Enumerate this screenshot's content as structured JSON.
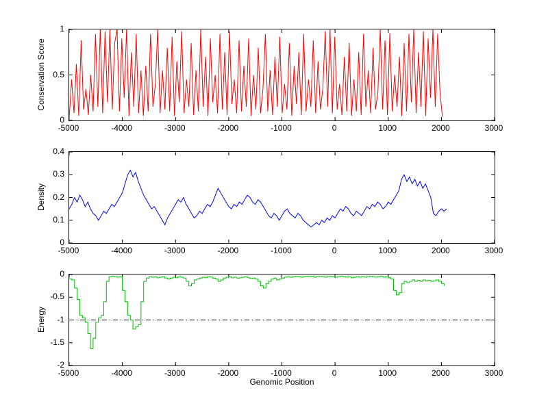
{
  "figure": {
    "background": "#ffffff"
  },
  "chart_data": [
    {
      "type": "line",
      "name": "conservation-score-plot",
      "ylabel": "Conservation Score",
      "color": "#ff0000",
      "grid": false,
      "legend": "none",
      "xlim": [
        -5000,
        3000
      ],
      "ylim": [
        0,
        1
      ],
      "xticks": [
        -5000,
        -4000,
        -3000,
        -2000,
        -1000,
        0,
        1000,
        2000,
        3000
      ],
      "xtick_labels": [
        "-5000",
        "-4000",
        "-3000",
        "-2000",
        "-1000",
        "0",
        "1000",
        "2000",
        "3000"
      ],
      "yticks": [
        0,
        0.5,
        1
      ],
      "ytick_labels": [
        "0",
        "0.5",
        "1"
      ],
      "x": {
        "start": -5000,
        "step": 45
      },
      "values": [
        0.02,
        0.45,
        0.08,
        0.62,
        0.05,
        0.88,
        0.12,
        0.35,
        0.06,
        0.5,
        0.1,
        0.95,
        0.15,
        1,
        0.08,
        0.98,
        0.2,
        1,
        0.12,
        0.85,
        1,
        0.1,
        0.9,
        0.25,
        1,
        0.05,
        0.75,
        0.15,
        0.95,
        0.08,
        0.55,
        0.05,
        0.6,
        0.1,
        0.95,
        0.15,
        0.4,
        1,
        0.08,
        0.55,
        0.12,
        0.8,
        0.1,
        0.92,
        0.05,
        0.65,
        0.2,
        0.98,
        0.08,
        0.45,
        0.15,
        0.85,
        0.06,
        0.55,
        0.1,
        1,
        0.15,
        0.7,
        0.05,
        0.9,
        0.2,
        0.5,
        0.08,
        0.95,
        0.12,
        0.75,
        0.06,
        0.98,
        0.18,
        0.45,
        0.08,
        0.88,
        0.1,
        0.6,
        0.15,
        0.9,
        0.05,
        0.5,
        0.12,
        0.8,
        0.08,
        0.35,
        0.95,
        0.1,
        0.55,
        0.06,
        0.7,
        0.15,
        0.92,
        0.08,
        0.4,
        0.12,
        0.85,
        0.05,
        0.6,
        0.18,
        0.75,
        0.06,
        0.95,
        0.1,
        0.45,
        0.15,
        0.88,
        0.08,
        0.65,
        0.12,
        0.35,
        0.98,
        0.15,
        1,
        0.08,
        0.92,
        0.12,
        0.4,
        0.06,
        0.7,
        0.1,
        0.85,
        0.05,
        0.45,
        0.1,
        0.75,
        0.06,
        0.95,
        0.15,
        0.55,
        0.08,
        0.8,
        0.12,
        0.3,
        1,
        0.12,
        0.88,
        0.06,
        0.96,
        0.1,
        0.5,
        0.15,
        0.7,
        0.05,
        0.85,
        0.1,
        0.95,
        0.2,
        1,
        0.08,
        0.75,
        0.15,
        0.98,
        0.05,
        0.9,
        0.25,
        1,
        0.15,
        0.95,
        0.3,
        0.04
      ]
    },
    {
      "type": "line",
      "name": "density-plot",
      "ylabel": "Density",
      "color": "#0000ff",
      "grid": false,
      "legend": "none",
      "xlim": [
        -5000,
        3000
      ],
      "ylim": [
        0,
        0.4
      ],
      "xticks": [
        -5000,
        -4000,
        -3000,
        -2000,
        -1000,
        0,
        1000,
        2000,
        3000
      ],
      "xtick_labels": [
        "-5000",
        "-4000",
        "-3000",
        "-2000",
        "-1000",
        "0",
        "1000",
        "2000",
        "3000"
      ],
      "yticks": [
        0,
        0.1,
        0.2,
        0.3,
        0.4
      ],
      "ytick_labels": [
        "0",
        "0.1",
        "0.2",
        "0.3",
        "0.4"
      ],
      "x": {
        "start": -5000,
        "step": 50
      },
      "values": [
        0.15,
        0.17,
        0.2,
        0.18,
        0.21,
        0.19,
        0.16,
        0.18,
        0.15,
        0.13,
        0.12,
        0.1,
        0.12,
        0.14,
        0.13,
        0.15,
        0.17,
        0.16,
        0.18,
        0.2,
        0.22,
        0.26,
        0.3,
        0.32,
        0.29,
        0.31,
        0.27,
        0.24,
        0.21,
        0.19,
        0.17,
        0.15,
        0.16,
        0.14,
        0.12,
        0.1,
        0.08,
        0.11,
        0.13,
        0.15,
        0.17,
        0.19,
        0.18,
        0.2,
        0.17,
        0.15,
        0.13,
        0.11,
        0.12,
        0.14,
        0.13,
        0.15,
        0.17,
        0.16,
        0.18,
        0.21,
        0.24,
        0.22,
        0.2,
        0.18,
        0.16,
        0.15,
        0.17,
        0.16,
        0.18,
        0.17,
        0.19,
        0.21,
        0.2,
        0.18,
        0.17,
        0.19,
        0.18,
        0.16,
        0.14,
        0.12,
        0.11,
        0.13,
        0.12,
        0.1,
        0.12,
        0.14,
        0.15,
        0.13,
        0.12,
        0.11,
        0.13,
        0.12,
        0.1,
        0.09,
        0.08,
        0.07,
        0.08,
        0.09,
        0.08,
        0.1,
        0.09,
        0.11,
        0.1,
        0.12,
        0.11,
        0.13,
        0.15,
        0.14,
        0.16,
        0.15,
        0.13,
        0.12,
        0.14,
        0.13,
        0.12,
        0.14,
        0.16,
        0.15,
        0.17,
        0.16,
        0.18,
        0.17,
        0.15,
        0.16,
        0.18,
        0.17,
        0.19,
        0.21,
        0.23,
        0.28,
        0.3,
        0.27,
        0.29,
        0.26,
        0.28,
        0.25,
        0.27,
        0.24,
        0.26,
        0.23,
        0.2,
        0.13,
        0.12,
        0.14,
        0.15,
        0.14,
        0.15
      ]
    },
    {
      "type": "line",
      "name": "energy-plot",
      "ylabel": "Energy",
      "xlabel": "Genomic Position",
      "color": "#00bf00",
      "interp": "step",
      "grid": false,
      "legend": "none",
      "xlim": [
        -5000,
        3000
      ],
      "ylim": [
        -2,
        0
      ],
      "xticks": [
        -5000,
        -4000,
        -3000,
        -2000,
        -1000,
        0,
        1000,
        2000,
        3000
      ],
      "xtick_labels": [
        "-5000",
        "-4000",
        "-3000",
        "-2000",
        "-1000",
        "0",
        "1000",
        "2000",
        "3000"
      ],
      "yticks": [
        -2,
        -1.5,
        -1,
        -0.5,
        0
      ],
      "ytick_labels": [
        "-2",
        "-1.5",
        "-1",
        "-0.5",
        "0"
      ],
      "reference_line": {
        "y": -1,
        "style": "dash-dot",
        "color": "#000000"
      },
      "x": {
        "start": -5000,
        "step": 50
      },
      "values": [
        -0.1,
        -0.12,
        -0.3,
        -0.55,
        -0.9,
        -0.95,
        -1.05,
        -1.3,
        -1.63,
        -1.4,
        -1.05,
        -0.95,
        -0.9,
        -0.6,
        -0.15,
        -0.05,
        -0.04,
        -0.05,
        -0.06,
        -0.05,
        -0.35,
        -0.6,
        -0.9,
        -1.0,
        -1.2,
        -1.15,
        -1.1,
        -0.6,
        -0.15,
        -0.08,
        -0.05,
        -0.06,
        -0.05,
        -0.07,
        -0.06,
        -0.05,
        -0.08,
        -0.1,
        -0.08,
        -0.06,
        -0.07,
        -0.05,
        -0.06,
        -0.08,
        -0.15,
        -0.25,
        -0.2,
        -0.12,
        -0.1,
        -0.08,
        -0.06,
        -0.07,
        -0.05,
        -0.06,
        -0.08,
        -0.1,
        -0.15,
        -0.12,
        -0.08,
        -0.06,
        -0.05,
        -0.07,
        -0.06,
        -0.08,
        -0.07,
        -0.06,
        -0.05,
        -0.07,
        -0.09,
        -0.08,
        -0.1,
        -0.15,
        -0.25,
        -0.3,
        -0.2,
        -0.15,
        -0.1,
        -0.08,
        -0.12,
        -0.1,
        -0.08,
        -0.06,
        -0.05,
        -0.06,
        -0.05,
        -0.04,
        -0.05,
        -0.06,
        -0.05,
        -0.04,
        -0.05,
        -0.04,
        -0.06,
        -0.05,
        -0.04,
        -0.05,
        -0.06,
        -0.05,
        -0.04,
        -0.05,
        -0.06,
        -0.05,
        -0.04,
        -0.05,
        -0.06,
        -0.05,
        -0.07,
        -0.06,
        -0.05,
        -0.06,
        -0.05,
        -0.06,
        -0.05,
        -0.04,
        -0.05,
        -0.06,
        -0.05,
        -0.04,
        -0.06,
        -0.05,
        -0.07,
        -0.1,
        -0.35,
        -0.45,
        -0.4,
        -0.2,
        -0.15,
        -0.18,
        -0.15,
        -0.12,
        -0.15,
        -0.13,
        -0.15,
        -0.12,
        -0.14,
        -0.13,
        -0.15,
        -0.14,
        -0.12,
        -0.15,
        -0.2,
        -0.25
      ]
    }
  ]
}
